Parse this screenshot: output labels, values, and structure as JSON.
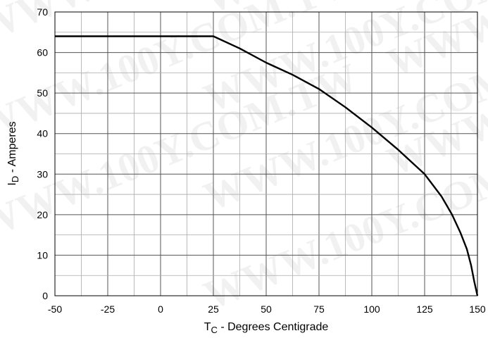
{
  "chart_data": {
    "type": "line",
    "title": "",
    "xlabel": {
      "main": "T",
      "sub": "C",
      "rest": " - Degrees Centigrade"
    },
    "ylabel": {
      "main": "I",
      "sub": "D",
      "rest": " - Amperes"
    },
    "xlim": [
      -50,
      150
    ],
    "ylim": [
      0,
      70
    ],
    "x_ticks": [
      "-50",
      "-25",
      "0",
      "25",
      "50",
      "75",
      "100",
      "125",
      "150"
    ],
    "y_ticks": [
      "0",
      "10",
      "20",
      "30",
      "40",
      "50",
      "60",
      "70"
    ],
    "x_tick_values": [
      -50,
      -25,
      0,
      25,
      50,
      75,
      100,
      125,
      150
    ],
    "y_tick_values": [
      0,
      10,
      20,
      30,
      40,
      50,
      60,
      70
    ],
    "grid": true,
    "series": [
      {
        "color": "#000000",
        "points": [
          [
            -50,
            64
          ],
          [
            25,
            64
          ],
          [
            37.5,
            61
          ],
          [
            50,
            57.5
          ],
          [
            62.5,
            54.5
          ],
          [
            75,
            51
          ],
          [
            87.5,
            46.5
          ],
          [
            100,
            41.5
          ],
          [
            112.5,
            36
          ],
          [
            125,
            30
          ],
          [
            133,
            24.5
          ],
          [
            138,
            20
          ],
          [
            142,
            15.5
          ],
          [
            145,
            11.5
          ],
          [
            147,
            7.5
          ],
          [
            148.5,
            3.5
          ],
          [
            150,
            0
          ]
        ]
      }
    ]
  },
  "watermark": "WWW.100Y.COM.TW"
}
